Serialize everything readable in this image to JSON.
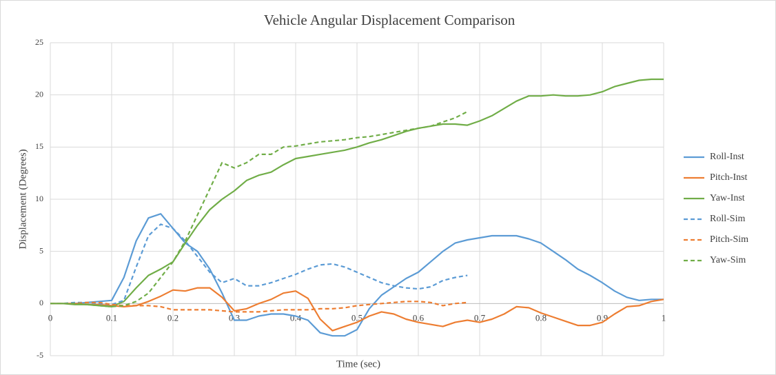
{
  "chart_data": {
    "type": "line",
    "title": "Vehicle Angular Displacement Comparison",
    "xlabel": "Time (sec)",
    "ylabel": "Displacement (Degrees)",
    "x": [
      0,
      0.02,
      0.04,
      0.06,
      0.08,
      0.1,
      0.12,
      0.14,
      0.16,
      0.18,
      0.2,
      0.22,
      0.24,
      0.26,
      0.28,
      0.3,
      0.32,
      0.34,
      0.36,
      0.38,
      0.4,
      0.42,
      0.44,
      0.46,
      0.48,
      0.5,
      0.52,
      0.54,
      0.56,
      0.58,
      0.6,
      0.62,
      0.64,
      0.66,
      0.68,
      0.7,
      0.72,
      0.74,
      0.76,
      0.78,
      0.8,
      0.82,
      0.84,
      0.86,
      0.88,
      0.9,
      0.92,
      0.94,
      0.96,
      0.98,
      1
    ],
    "series": [
      {
        "name": "Roll-Inst",
        "color": "#5b9bd5",
        "dashed": false,
        "values": [
          0,
          0,
          0,
          0.1,
          0.2,
          0.3,
          2.5,
          6,
          8.2,
          8.6,
          7.2,
          5.8,
          5,
          3.3,
          1,
          -1.6,
          -1.6,
          -1.2,
          -1,
          -1,
          -1.2,
          -1.6,
          -2.8,
          -3.1,
          -3.1,
          -2.5,
          -0.5,
          0.8,
          1.6,
          2.4,
          3,
          4,
          5,
          5.8,
          6.1,
          6.3,
          6.5,
          6.5,
          6.5,
          6.2,
          5.8,
          5,
          4.2,
          3.3,
          2.7,
          2,
          1.2,
          0.6,
          0.3,
          0.4,
          0.4
        ]
      },
      {
        "name": "Pitch-Inst",
        "color": "#ed7d31",
        "dashed": false,
        "values": [
          0,
          0,
          0,
          -0.1,
          -0.1,
          -0.2,
          -0.3,
          -0.2,
          0.2,
          0.7,
          1.3,
          1.2,
          1.5,
          1.5,
          0.6,
          -0.7,
          -0.5,
          0,
          0.4,
          1,
          1.2,
          0.5,
          -1.5,
          -2.6,
          -2.2,
          -1.8,
          -1.2,
          -0.8,
          -1,
          -1.5,
          -1.8,
          -2,
          -2.2,
          -1.8,
          -1.6,
          -1.8,
          -1.5,
          -1,
          -0.3,
          -0.4,
          -0.9,
          -1.3,
          -1.7,
          -2.1,
          -2.1,
          -1.8,
          -1,
          -0.3,
          -0.2,
          0.2,
          0.4
        ]
      },
      {
        "name": "Yaw-Inst",
        "color": "#70ad47",
        "dashed": false,
        "values": [
          0,
          0,
          -0.1,
          -0.1,
          -0.2,
          -0.3,
          0.2,
          1.5,
          2.7,
          3.3,
          4,
          5.8,
          7.5,
          9,
          10,
          10.8,
          11.8,
          12.3,
          12.6,
          13.3,
          13.9,
          14.1,
          14.3,
          14.5,
          14.7,
          15,
          15.4,
          15.7,
          16.1,
          16.5,
          16.8,
          17,
          17.2,
          17.2,
          17.1,
          17.5,
          18,
          18.7,
          19.4,
          19.9,
          19.9,
          20,
          19.9,
          19.9,
          20,
          20.3,
          20.8,
          21.1,
          21.4,
          21.5,
          21.5
        ]
      },
      {
        "name": "Roll-Sim",
        "color": "#5b9bd5",
        "dashed": true,
        "values": [
          0,
          0,
          0.1,
          0.1,
          0,
          -0.1,
          0.3,
          3.5,
          6.5,
          7.6,
          7.2,
          6,
          4.5,
          3,
          2,
          2.4,
          1.7,
          1.7,
          2,
          2.4,
          2.8,
          3.3,
          3.7,
          3.8,
          3.5,
          3,
          2.5,
          2,
          1.7,
          1.5,
          1.4,
          1.6,
          2.2,
          2.5,
          2.7,
          null,
          null,
          null,
          null,
          null,
          null,
          null,
          null,
          null,
          null,
          null,
          null,
          null,
          null,
          null,
          null
        ]
      },
      {
        "name": "Pitch-Sim",
        "color": "#ed7d31",
        "dashed": true,
        "values": [
          0,
          0,
          0,
          0.1,
          0.1,
          -0.1,
          -0.2,
          -0.2,
          -0.2,
          -0.3,
          -0.6,
          -0.6,
          -0.6,
          -0.6,
          -0.7,
          -0.8,
          -0.8,
          -0.8,
          -0.7,
          -0.6,
          -0.6,
          -0.6,
          -0.5,
          -0.5,
          -0.4,
          -0.2,
          -0.1,
          0,
          0.1,
          0.2,
          0.2,
          0.1,
          -0.2,
          0,
          0.1,
          null,
          null,
          null,
          null,
          null,
          null,
          null,
          null,
          null,
          null,
          null,
          null,
          null,
          null,
          null,
          null
        ]
      },
      {
        "name": "Yaw-Sim",
        "color": "#70ad47",
        "dashed": true,
        "values": [
          0,
          0,
          0,
          -0.1,
          -0.2,
          -0.3,
          -0.2,
          0.2,
          1,
          2.5,
          4,
          6,
          8.5,
          11,
          13.5,
          13,
          13.5,
          14.3,
          14.3,
          15,
          15.1,
          15.3,
          15.5,
          15.6,
          15.7,
          15.9,
          16,
          16.2,
          16.4,
          16.6,
          16.8,
          17,
          17.4,
          17.8,
          18.4,
          null,
          null,
          null,
          null,
          null,
          null,
          null,
          null,
          null,
          null,
          null,
          null,
          null,
          null,
          null,
          null
        ]
      }
    ],
    "xlim": [
      0,
      1
    ],
    "xticks": [
      0,
      0.1,
      0.2,
      0.3,
      0.4,
      0.5,
      0.6,
      0.7,
      0.8,
      0.9,
      1
    ],
    "ylim": [
      -5,
      25
    ],
    "yticks": [
      -5,
      0,
      5,
      10,
      15,
      20,
      25
    ],
    "grid": true,
    "legend_position": "right"
  }
}
